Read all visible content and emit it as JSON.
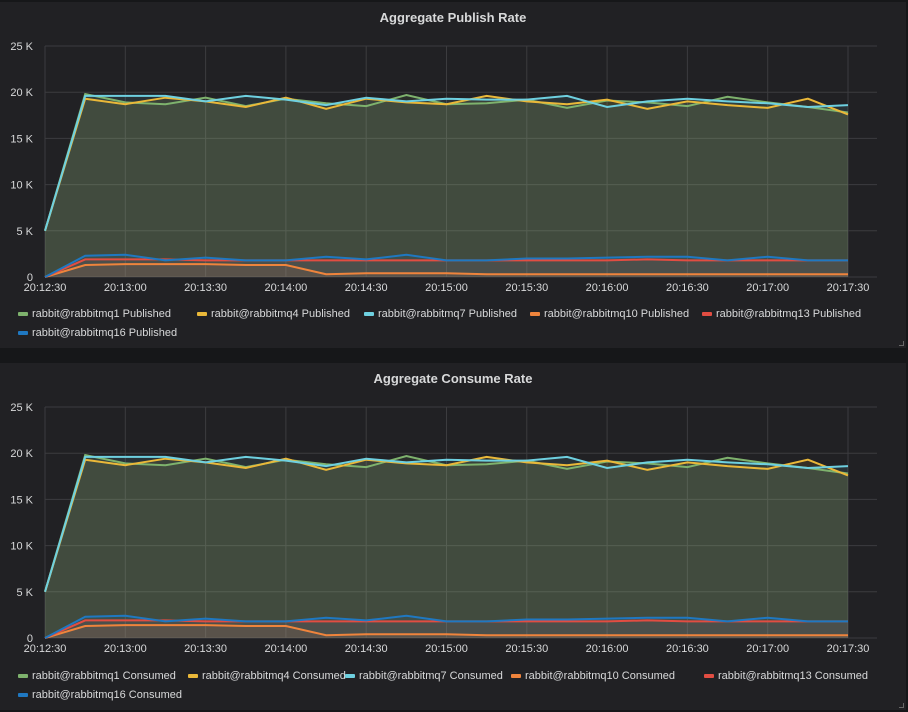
{
  "panels": [
    {
      "title": "Aggregate Publish Rate"
    },
    {
      "title": "Aggregate Consume Rate"
    }
  ],
  "chart_data": [
    {
      "type": "line",
      "title": "Aggregate Publish Rate",
      "ylim": [
        0,
        25000
      ],
      "y_ticks": [
        "0",
        "5 K",
        "10 K",
        "15 K",
        "20 K",
        "25 K"
      ],
      "x_ticks": [
        "20:12:30",
        "20:13:00",
        "20:13:30",
        "20:14:00",
        "20:14:30",
        "20:15:00",
        "20:15:30",
        "20:16:00",
        "20:16:30",
        "20:17:00",
        "20:17:30"
      ],
      "x": [
        "20:12:30",
        "20:12:45",
        "20:13:00",
        "20:13:15",
        "20:13:30",
        "20:13:45",
        "20:14:00",
        "20:14:15",
        "20:14:30",
        "20:14:45",
        "20:15:00",
        "20:15:15",
        "20:15:30",
        "20:15:45",
        "20:16:00",
        "20:16:15",
        "20:16:30",
        "20:16:45",
        "20:17:00",
        "20:17:15",
        "20:17:30"
      ],
      "grid": true,
      "legend": "bottom",
      "series": [
        {
          "name": "rabbit@rabbitmq1 Published",
          "color": "#7eb26d",
          "values": [
            5000,
            19800,
            18900,
            18700,
            19400,
            18500,
            19300,
            18800,
            18500,
            19700,
            18700,
            18800,
            19200,
            18300,
            19100,
            18900,
            18500,
            19500,
            18900,
            18400,
            17800
          ]
        },
        {
          "name": "rabbit@rabbitmq4 Published",
          "color": "#eab839",
          "values": [
            5000,
            19300,
            18700,
            19400,
            19000,
            18400,
            19400,
            18200,
            19300,
            18900,
            18700,
            19600,
            19000,
            18700,
            19200,
            18200,
            19000,
            18600,
            18300,
            19300,
            17600
          ]
        },
        {
          "name": "rabbit@rabbitmq7 Published",
          "color": "#6ed0e0",
          "values": [
            5000,
            19600,
            19600,
            19600,
            19000,
            19600,
            19200,
            18600,
            19400,
            19000,
            19300,
            19200,
            19200,
            19600,
            18400,
            19000,
            19300,
            19000,
            18800,
            18400,
            18600
          ]
        },
        {
          "name": "rabbit@rabbitmq10 Published",
          "color": "#ef843c",
          "values": [
            0,
            1300,
            1400,
            1400,
            1400,
            1300,
            1300,
            300,
            400,
            400,
            400,
            300,
            300,
            300,
            300,
            300,
            300,
            300,
            300,
            300,
            300
          ]
        },
        {
          "name": "rabbit@rabbitmq13 Published",
          "color": "#e24d42",
          "values": [
            0,
            1900,
            1900,
            1900,
            1800,
            1800,
            1800,
            1800,
            1800,
            1800,
            1800,
            1800,
            1800,
            1800,
            1800,
            1900,
            1800,
            1800,
            1800,
            1800,
            1800
          ]
        },
        {
          "name": "rabbit@rabbitmq16 Published",
          "color": "#1f78c1",
          "values": [
            0,
            2300,
            2400,
            1800,
            2100,
            1800,
            1800,
            2200,
            1900,
            2400,
            1800,
            1800,
            2000,
            2000,
            2100,
            2200,
            2200,
            1800,
            2200,
            1800,
            1800
          ]
        }
      ]
    },
    {
      "type": "line",
      "title": "Aggregate Consume Rate",
      "ylim": [
        0,
        25000
      ],
      "y_ticks": [
        "0",
        "5 K",
        "10 K",
        "15 K",
        "20 K",
        "25 K"
      ],
      "x_ticks": [
        "20:12:30",
        "20:13:00",
        "20:13:30",
        "20:14:00",
        "20:14:30",
        "20:15:00",
        "20:15:30",
        "20:16:00",
        "20:16:30",
        "20:17:00",
        "20:17:30"
      ],
      "x": [
        "20:12:30",
        "20:12:45",
        "20:13:00",
        "20:13:15",
        "20:13:30",
        "20:13:45",
        "20:14:00",
        "20:14:15",
        "20:14:30",
        "20:14:45",
        "20:15:00",
        "20:15:15",
        "20:15:30",
        "20:15:45",
        "20:16:00",
        "20:16:15",
        "20:16:30",
        "20:16:45",
        "20:17:00",
        "20:17:15",
        "20:17:30"
      ],
      "grid": true,
      "legend": "bottom",
      "series": [
        {
          "name": "rabbit@rabbitmq1 Consumed",
          "color": "#7eb26d",
          "values": [
            5000,
            19800,
            18900,
            18700,
            19400,
            18500,
            19300,
            18800,
            18500,
            19700,
            18700,
            18800,
            19200,
            18300,
            19100,
            18900,
            18500,
            19500,
            18900,
            18400,
            17800
          ]
        },
        {
          "name": "rabbit@rabbitmq4 Consumed",
          "color": "#eab839",
          "values": [
            5000,
            19300,
            18700,
            19400,
            19000,
            18400,
            19400,
            18200,
            19300,
            18900,
            18700,
            19600,
            19000,
            18700,
            19200,
            18200,
            19000,
            18600,
            18300,
            19300,
            17600
          ]
        },
        {
          "name": "rabbit@rabbitmq7 Consumed",
          "color": "#6ed0e0",
          "values": [
            5000,
            19600,
            19600,
            19600,
            19000,
            19600,
            19200,
            18600,
            19400,
            19000,
            19300,
            19200,
            19200,
            19600,
            18400,
            19000,
            19300,
            19000,
            18800,
            18400,
            18600
          ]
        },
        {
          "name": "rabbit@rabbitmq10 Consumed",
          "color": "#ef843c",
          "values": [
            0,
            1300,
            1400,
            1400,
            1400,
            1300,
            1300,
            300,
            400,
            400,
            400,
            300,
            300,
            300,
            300,
            300,
            300,
            300,
            300,
            300,
            300
          ]
        },
        {
          "name": "rabbit@rabbitmq13 Consumed",
          "color": "#e24d42",
          "values": [
            0,
            1900,
            1900,
            1900,
            1800,
            1800,
            1800,
            1800,
            1800,
            1800,
            1800,
            1800,
            1800,
            1800,
            1800,
            1900,
            1800,
            1800,
            1800,
            1800,
            1800
          ]
        },
        {
          "name": "rabbit@rabbitmq16 Consumed",
          "color": "#1f78c1",
          "values": [
            0,
            2300,
            2400,
            1800,
            2100,
            1800,
            1800,
            2200,
            1900,
            2400,
            1800,
            1800,
            2000,
            2000,
            2100,
            2200,
            2200,
            1800,
            2200,
            1800,
            1800
          ]
        }
      ]
    }
  ]
}
